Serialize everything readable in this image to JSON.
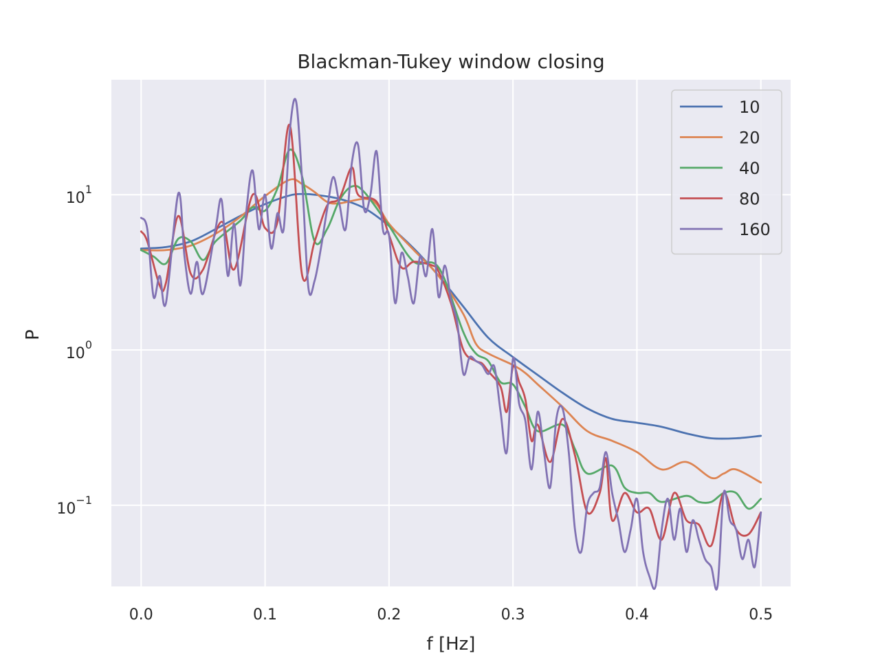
{
  "chart_data": {
    "type": "line",
    "title": "Blackman-Tukey window closing",
    "xlabel": "f [Hz]",
    "ylabel": "P",
    "xlim": [
      -0.024,
      0.524
    ],
    "ylim": [
      0.03,
      55
    ],
    "yscale": "log",
    "grid": true,
    "legend_position": "top-right",
    "x_ticks": [
      0.0,
      0.1,
      0.2,
      0.3,
      0.4,
      0.5
    ],
    "x_tick_labels": [
      "0.0",
      "0.1",
      "0.2",
      "0.3",
      "0.4",
      "0.5"
    ],
    "y_ticks": [
      0.1,
      1,
      10
    ],
    "y_tick_labels": [
      {
        "base": "10",
        "exp": "−1"
      },
      {
        "base": "10",
        "exp": "0"
      },
      {
        "base": "10",
        "exp": "1"
      }
    ],
    "series": [
      {
        "name": "10",
        "color": "#4c72b0",
        "points": [
          [
            0.0,
            4.5
          ],
          [
            0.02,
            4.6
          ],
          [
            0.04,
            5.0
          ],
          [
            0.06,
            6.0
          ],
          [
            0.08,
            7.3
          ],
          [
            0.1,
            8.7
          ],
          [
            0.12,
            9.9
          ],
          [
            0.13,
            10.1
          ],
          [
            0.14,
            10.0
          ],
          [
            0.16,
            9.4
          ],
          [
            0.18,
            8.2
          ],
          [
            0.2,
            6.3
          ],
          [
            0.22,
            4.5
          ],
          [
            0.24,
            3.0
          ],
          [
            0.26,
            1.9
          ],
          [
            0.28,
            1.2
          ],
          [
            0.3,
            0.9
          ],
          [
            0.32,
            0.69
          ],
          [
            0.34,
            0.53
          ],
          [
            0.36,
            0.42
          ],
          [
            0.38,
            0.36
          ],
          [
            0.4,
            0.34
          ],
          [
            0.42,
            0.32
          ],
          [
            0.44,
            0.29
          ],
          [
            0.46,
            0.27
          ],
          [
            0.48,
            0.27
          ],
          [
            0.5,
            0.28
          ]
        ]
      },
      {
        "name": "20",
        "color": "#dd8452",
        "points": [
          [
            0.0,
            4.4
          ],
          [
            0.02,
            4.4
          ],
          [
            0.04,
            4.7
          ],
          [
            0.06,
            5.6
          ],
          [
            0.08,
            7.2
          ],
          [
            0.1,
            9.8
          ],
          [
            0.12,
            12.5
          ],
          [
            0.13,
            11.7
          ],
          [
            0.14,
            10.4
          ],
          [
            0.15,
            9.0
          ],
          [
            0.16,
            8.8
          ],
          [
            0.18,
            9.4
          ],
          [
            0.19,
            8.7
          ],
          [
            0.2,
            6.5
          ],
          [
            0.22,
            4.4
          ],
          [
            0.24,
            3.0
          ],
          [
            0.26,
            1.7
          ],
          [
            0.27,
            1.1
          ],
          [
            0.28,
            0.95
          ],
          [
            0.3,
            0.8
          ],
          [
            0.31,
            0.71
          ],
          [
            0.32,
            0.6
          ],
          [
            0.34,
            0.43
          ],
          [
            0.36,
            0.3
          ],
          [
            0.38,
            0.26
          ],
          [
            0.4,
            0.22
          ],
          [
            0.42,
            0.17
          ],
          [
            0.44,
            0.19
          ],
          [
            0.46,
            0.15
          ],
          [
            0.47,
            0.16
          ],
          [
            0.48,
            0.17
          ],
          [
            0.5,
            0.14
          ]
        ]
      },
      {
        "name": "40",
        "color": "#55a868",
        "points": [
          [
            0.0,
            4.4
          ],
          [
            0.01,
            4.0
          ],
          [
            0.02,
            3.6
          ],
          [
            0.03,
            5.2
          ],
          [
            0.04,
            5.0
          ],
          [
            0.05,
            3.8
          ],
          [
            0.06,
            5.0
          ],
          [
            0.08,
            6.8
          ],
          [
            0.09,
            8.3
          ],
          [
            0.1,
            7.9
          ],
          [
            0.11,
            11.0
          ],
          [
            0.12,
            19.5
          ],
          [
            0.13,
            13.0
          ],
          [
            0.14,
            5.0
          ],
          [
            0.15,
            6.0
          ],
          [
            0.16,
            9.2
          ],
          [
            0.17,
            11.3
          ],
          [
            0.18,
            10.4
          ],
          [
            0.2,
            6.3
          ],
          [
            0.22,
            3.7
          ],
          [
            0.24,
            3.4
          ],
          [
            0.26,
            1.3
          ],
          [
            0.27,
            0.95
          ],
          [
            0.28,
            0.85
          ],
          [
            0.29,
            0.62
          ],
          [
            0.3,
            0.6
          ],
          [
            0.31,
            0.43
          ],
          [
            0.32,
            0.3
          ],
          [
            0.34,
            0.33
          ],
          [
            0.35,
            0.23
          ],
          [
            0.36,
            0.16
          ],
          [
            0.38,
            0.18
          ],
          [
            0.39,
            0.13
          ],
          [
            0.4,
            0.12
          ],
          [
            0.41,
            0.12
          ],
          [
            0.42,
            0.105
          ],
          [
            0.44,
            0.115
          ],
          [
            0.45,
            0.105
          ],
          [
            0.46,
            0.105
          ],
          [
            0.47,
            0.12
          ],
          [
            0.48,
            0.12
          ],
          [
            0.49,
            0.095
          ],
          [
            0.5,
            0.11
          ]
        ]
      },
      {
        "name": "80",
        "color": "#c44e52",
        "points": [
          [
            0.0,
            5.8
          ],
          [
            0.005,
            5.0
          ],
          [
            0.015,
            2.6
          ],
          [
            0.02,
            2.7
          ],
          [
            0.03,
            7.3
          ],
          [
            0.04,
            3.1
          ],
          [
            0.05,
            3.3
          ],
          [
            0.065,
            6.7
          ],
          [
            0.075,
            3.3
          ],
          [
            0.09,
            10.0
          ],
          [
            0.1,
            6.1
          ],
          [
            0.11,
            6.7
          ],
          [
            0.12,
            28.0
          ],
          [
            0.13,
            3.0
          ],
          [
            0.14,
            5.0
          ],
          [
            0.15,
            8.5
          ],
          [
            0.16,
            9.5
          ],
          [
            0.17,
            15.0
          ],
          [
            0.175,
            10.0
          ],
          [
            0.19,
            9.0
          ],
          [
            0.2,
            5.5
          ],
          [
            0.21,
            3.4
          ],
          [
            0.22,
            3.7
          ],
          [
            0.235,
            3.5
          ],
          [
            0.24,
            3.2
          ],
          [
            0.25,
            2.0
          ],
          [
            0.26,
            1.0
          ],
          [
            0.27,
            0.85
          ],
          [
            0.275,
            0.82
          ],
          [
            0.28,
            0.73
          ],
          [
            0.29,
            0.58
          ],
          [
            0.295,
            0.4
          ],
          [
            0.3,
            0.78
          ],
          [
            0.305,
            0.62
          ],
          [
            0.31,
            0.48
          ],
          [
            0.315,
            0.26
          ],
          [
            0.32,
            0.33
          ],
          [
            0.33,
            0.19
          ],
          [
            0.34,
            0.36
          ],
          [
            0.35,
            0.21
          ],
          [
            0.36,
            0.09
          ],
          [
            0.37,
            0.12
          ],
          [
            0.375,
            0.2
          ],
          [
            0.38,
            0.08
          ],
          [
            0.39,
            0.12
          ],
          [
            0.4,
            0.09
          ],
          [
            0.41,
            0.095
          ],
          [
            0.42,
            0.06
          ],
          [
            0.43,
            0.12
          ],
          [
            0.44,
            0.08
          ],
          [
            0.45,
            0.075
          ],
          [
            0.46,
            0.055
          ],
          [
            0.47,
            0.12
          ],
          [
            0.48,
            0.07
          ],
          [
            0.49,
            0.065
          ],
          [
            0.5,
            0.09
          ]
        ]
      },
      {
        "name": "160",
        "color": "#8172b3",
        "points": [
          [
            0.0,
            7.1
          ],
          [
            0.005,
            6.0
          ],
          [
            0.01,
            2.2
          ],
          [
            0.015,
            3.0
          ],
          [
            0.02,
            2.0
          ],
          [
            0.03,
            10.2
          ],
          [
            0.035,
            4.0
          ],
          [
            0.04,
            2.3
          ],
          [
            0.045,
            3.7
          ],
          [
            0.05,
            2.3
          ],
          [
            0.06,
            6.0
          ],
          [
            0.065,
            9.2
          ],
          [
            0.07,
            3.0
          ],
          [
            0.075,
            6.5
          ],
          [
            0.08,
            2.6
          ],
          [
            0.085,
            8.0
          ],
          [
            0.09,
            14.3
          ],
          [
            0.095,
            6.0
          ],
          [
            0.1,
            10.0
          ],
          [
            0.105,
            4.5
          ],
          [
            0.11,
            7.6
          ],
          [
            0.115,
            6.0
          ],
          [
            0.12,
            26.0
          ],
          [
            0.125,
            40.0
          ],
          [
            0.13,
            12.0
          ],
          [
            0.135,
            2.5
          ],
          [
            0.14,
            2.8
          ],
          [
            0.145,
            4.5
          ],
          [
            0.15,
            8.0
          ],
          [
            0.155,
            13.0
          ],
          [
            0.16,
            8.7
          ],
          [
            0.165,
            6.0
          ],
          [
            0.17,
            16.0
          ],
          [
            0.175,
            21.0
          ],
          [
            0.18,
            8.0
          ],
          [
            0.185,
            10.0
          ],
          [
            0.19,
            19.0
          ],
          [
            0.195,
            6.0
          ],
          [
            0.2,
            5.5
          ],
          [
            0.205,
            2.0
          ],
          [
            0.21,
            4.2
          ],
          [
            0.215,
            3.0
          ],
          [
            0.22,
            2.0
          ],
          [
            0.225,
            4.0
          ],
          [
            0.23,
            3.0
          ],
          [
            0.235,
            6.0
          ],
          [
            0.24,
            2.2
          ],
          [
            0.245,
            3.5
          ],
          [
            0.25,
            2.1
          ],
          [
            0.255,
            1.5
          ],
          [
            0.26,
            0.7
          ],
          [
            0.265,
            0.9
          ],
          [
            0.27,
            0.85
          ],
          [
            0.275,
            0.8
          ],
          [
            0.28,
            0.7
          ],
          [
            0.285,
            0.78
          ],
          [
            0.29,
            0.4
          ],
          [
            0.295,
            0.22
          ],
          [
            0.3,
            0.88
          ],
          [
            0.305,
            0.45
          ],
          [
            0.31,
            0.35
          ],
          [
            0.315,
            0.17
          ],
          [
            0.32,
            0.4
          ],
          [
            0.325,
            0.22
          ],
          [
            0.33,
            0.13
          ],
          [
            0.335,
            0.36
          ],
          [
            0.34,
            0.42
          ],
          [
            0.345,
            0.22
          ],
          [
            0.35,
            0.07
          ],
          [
            0.355,
            0.05
          ],
          [
            0.36,
            0.1
          ],
          [
            0.365,
            0.12
          ],
          [
            0.37,
            0.13
          ],
          [
            0.375,
            0.22
          ],
          [
            0.38,
            0.12
          ],
          [
            0.385,
            0.08
          ],
          [
            0.39,
            0.05
          ],
          [
            0.395,
            0.07
          ],
          [
            0.4,
            0.11
          ],
          [
            0.405,
            0.05
          ],
          [
            0.41,
            0.035
          ],
          [
            0.415,
            0.03
          ],
          [
            0.42,
            0.07
          ],
          [
            0.425,
            0.11
          ],
          [
            0.43,
            0.06
          ],
          [
            0.435,
            0.095
          ],
          [
            0.44,
            0.05
          ],
          [
            0.445,
            0.08
          ],
          [
            0.45,
            0.06
          ],
          [
            0.455,
            0.045
          ],
          [
            0.46,
            0.04
          ],
          [
            0.465,
            0.03
          ],
          [
            0.47,
            0.12
          ],
          [
            0.475,
            0.08
          ],
          [
            0.48,
            0.07
          ],
          [
            0.485,
            0.045
          ],
          [
            0.49,
            0.06
          ],
          [
            0.495,
            0.04
          ],
          [
            0.5,
            0.09
          ]
        ]
      }
    ]
  }
}
